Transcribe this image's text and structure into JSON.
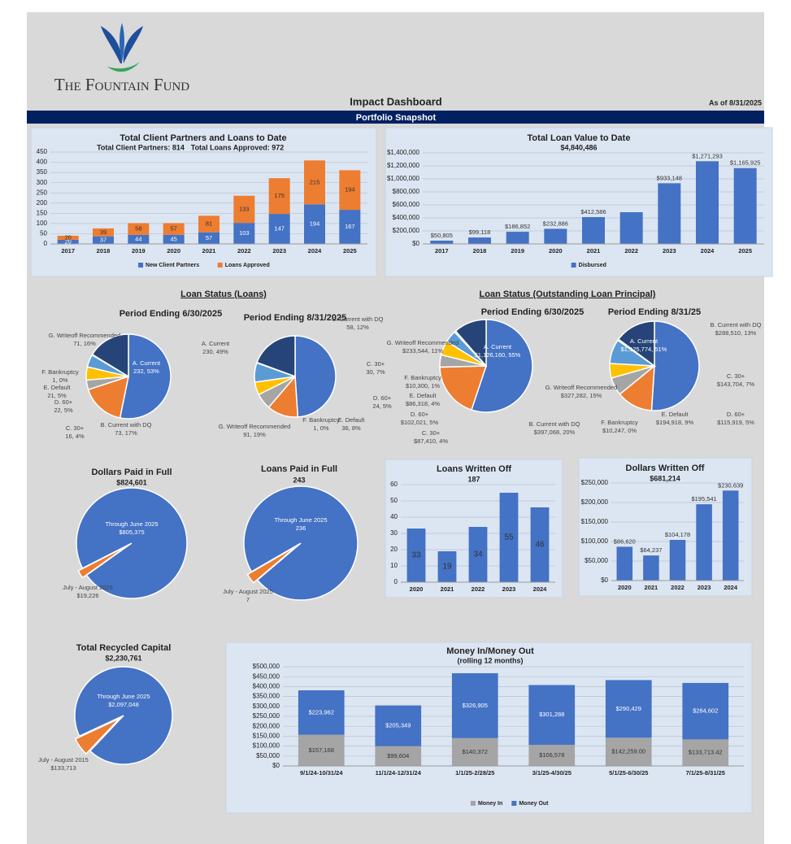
{
  "header": {
    "logo": "The Fountain Fund",
    "title": "Impact Dashboard",
    "as_of": "As of 8/31/2025",
    "band": "Portfolio Snapshot"
  },
  "sections": {
    "loans": "Loan Status (Loans)",
    "principal": "Loan Status (Outstanding Loan Principal)"
  },
  "chart_data": [
    {
      "type": "bar",
      "title": "Total Client Partners and Loans to Date",
      "subtitle": [
        "Total Client Partners: 814",
        "Total Loans Approved: 972"
      ],
      "categories": [
        "2017",
        "2018",
        "2019",
        "2020",
        "2021",
        "2022",
        "2023",
        "2024",
        "2025"
      ],
      "series": [
        {
          "name": "New Client Partners",
          "color": "#4472c4",
          "values": [
            20,
            37,
            44,
            45,
            57,
            103,
            147,
            194,
            167
          ]
        },
        {
          "name": "Loans Approved",
          "color": "#ed7d31",
          "values": [
            20,
            39,
            58,
            57,
            81,
            133,
            175,
            215,
            194
          ]
        }
      ],
      "ylim": [
        0,
        450
      ],
      "yticks": [
        0,
        50,
        100,
        150,
        200,
        250,
        300,
        350,
        400,
        450
      ],
      "grid": true,
      "legend": "bottom"
    },
    {
      "type": "bar",
      "title": "Total Loan Value to Date",
      "subtitle": "$4,840,486",
      "categories": [
        "2017",
        "2018",
        "2019",
        "2020",
        "2021",
        "2022",
        "2023",
        "2024",
        "2025"
      ],
      "series": [
        {
          "name": "Disbursed",
          "color": "#4472c4",
          "values": [
            50805,
            99118,
            186852,
            232886,
            412586,
            487874,
            933148,
            1271293,
            1165925
          ],
          "value_labels": [
            "$50,805",
            "$99,118",
            "$186,852",
            "$232,886",
            "$412,586",
            "",
            "$933,148",
            "$1,271,293",
            "$1,165,925"
          ]
        }
      ],
      "ylim": [
        0,
        1400000
      ],
      "yticks": [
        {
          "value": 0,
          "label": "$0"
        },
        {
          "value": 200000,
          "label": "$200,000"
        },
        {
          "value": 400000,
          "label": "$400,000"
        },
        {
          "value": 600000,
          "label": "$600,000"
        },
        {
          "value": 800000,
          "label": "$800,000"
        },
        {
          "value": 1000000,
          "label": "$1,000,000"
        },
        {
          "value": 1200000,
          "label": "$1,200,000"
        },
        {
          "value": 1400000,
          "label": "$1,400,000"
        }
      ],
      "grid": true,
      "legend": "bottom"
    },
    {
      "type": "pie",
      "title": "Period Ending 6/30/2025",
      "categories": [
        "A. Current",
        "B. Current with DQ",
        "C. 30+",
        "D. 60+",
        "E. Default",
        "F. Bankruptcy",
        "G. Writeoff Recommended"
      ],
      "values": [
        232,
        73,
        16,
        22,
        21,
        1,
        71
      ],
      "value_labels": [
        "232, 53%",
        "73, 17%",
        "16, 4%",
        "22, 5%",
        "21, 5%",
        "1, 0%",
        "71, 16%"
      ],
      "colors": [
        "#4472c4",
        "#ed7d31",
        "#a5a5a5",
        "#ffc000",
        "#5b9bd5",
        "#70ad47",
        "#264478"
      ]
    },
    {
      "type": "pie",
      "title": "Period Ending 8/31/2025",
      "categories": [
        "A. Current",
        "B. Current with DQ",
        "C. 30+",
        "D. 60+",
        "E. Default",
        "F. Bankruptcy",
        "G. Writeoff Recommended"
      ],
      "values": [
        230,
        58,
        30,
        24,
        36,
        1,
        91
      ],
      "value_labels": [
        "230, 49%",
        "58, 12%",
        "30, 7%",
        "24, 5%",
        "36, 8%",
        "1, 0%",
        "91, 19%"
      ],
      "colors": [
        "#4472c4",
        "#ed7d31",
        "#a5a5a5",
        "#ffc000",
        "#5b9bd5",
        "#70ad47",
        "#264478"
      ]
    },
    {
      "type": "pie",
      "title": "Period Ending 6/30/2025",
      "categories": [
        "A. Current",
        "B. Current with DQ",
        "C. 30+",
        "D. 60+",
        "E. Default",
        "F. Bankruptcy",
        "G. Writeoff Recommended"
      ],
      "values": [
        1126160,
        397068,
        87410,
        102021,
        86318,
        10300,
        233544
      ],
      "value_labels": [
        "$1,126,160, 55%",
        "$397,068, 20%",
        "$87,410, 4%",
        "$102,021, 5%",
        "$86,318, 4%",
        "$10,300, 1%",
        "$233,544, 11%"
      ],
      "colors": [
        "#4472c4",
        "#ed7d31",
        "#a5a5a5",
        "#ffc000",
        "#5b9bd5",
        "#70ad47",
        "#264478"
      ]
    },
    {
      "type": "pie",
      "title": "Period Ending 8/31/25",
      "categories": [
        "A. Current",
        "B. Current with DQ",
        "C. 30+",
        "D. 60+",
        "E. Default",
        "F. Bankruptcy",
        "G. Writeoff Recommended"
      ],
      "values": [
        1125774,
        288510,
        143704,
        115919,
        194918,
        10247,
        327282
      ],
      "value_labels": [
        "$1,125,774, 51%",
        "$288,510, 13%",
        "$143,704, 7%",
        "$115,919, 5%",
        "$194,918, 9%",
        "$10,247, 0%",
        "$327,282, 15%"
      ],
      "colors": [
        "#4472c4",
        "#ed7d31",
        "#a5a5a5",
        "#ffc000",
        "#5b9bd5",
        "#70ad47",
        "#264478"
      ]
    },
    {
      "type": "pie",
      "title": "Dollars Paid in Full",
      "subtitle": "$824,601",
      "categories": [
        "Through June 2025",
        "July - August 2025"
      ],
      "values": [
        805375,
        19226
      ],
      "value_labels": [
        "$805,375",
        "$19,226"
      ],
      "colors": [
        "#4472c4",
        "#ed7d31"
      ]
    },
    {
      "type": "pie",
      "title": "Loans Paid in Full",
      "subtitle": "243",
      "categories": [
        "Through June 2025",
        "July - August 2025"
      ],
      "values": [
        236,
        7
      ],
      "colors": [
        "#4472c4",
        "#ed7d31"
      ]
    },
    {
      "type": "bar",
      "title": "Loans Written Off",
      "subtitle": "187",
      "categories": [
        "2020",
        "2021",
        "2022",
        "2023",
        "2024"
      ],
      "series": [
        {
          "color": "#4472c4",
          "values": [
            33,
            19,
            34,
            55,
            46
          ]
        }
      ],
      "ylim": [
        0,
        60
      ],
      "yticks": [
        0,
        10,
        20,
        30,
        40,
        50,
        60
      ],
      "grid": true
    },
    {
      "type": "bar",
      "title": "Dollars Written Off",
      "subtitle": "$681,214",
      "categories": [
        "2020",
        "2021",
        "2022",
        "2023",
        "2024"
      ],
      "series": [
        {
          "color": "#4472c4",
          "values": [
            86620,
            64237,
            104178,
            195541,
            230639
          ],
          "value_labels": [
            "$86,620",
            "$64,237",
            "$104,178",
            "$195,541",
            "$230,639"
          ]
        }
      ],
      "ylim": [
        0,
        250000
      ],
      "yticks": [
        {
          "value": 0,
          "label": "$0"
        },
        {
          "value": 50000,
          "label": "$50,000"
        },
        {
          "value": 100000,
          "label": "$100,000"
        },
        {
          "value": 150000,
          "label": "$150,000"
        },
        {
          "value": 200000,
          "label": "$200,000"
        },
        {
          "value": 250000,
          "label": "$250,000"
        }
      ],
      "grid": true
    },
    {
      "type": "pie",
      "title": "Total Recycled Capital",
      "subtitle": "$2,230,761",
      "categories": [
        "Through June 2025",
        "July - August 2015"
      ],
      "values": [
        2097048,
        133713
      ],
      "value_labels": [
        "$2,097,048",
        "$133,713"
      ],
      "colors": [
        "#4472c4",
        "#ed7d31"
      ]
    },
    {
      "type": "bar",
      "title": "Money In/Money Out",
      "subtitle": "(rolling 12 months)",
      "categories": [
        "9/1/24-10/31/24",
        "11/1/24-12/31/24",
        "1/1/25-2/28/25",
        "3/1/25-4/30/25",
        "5/1/25-6/30/25",
        "7/1/25-8/31/25"
      ],
      "series": [
        {
          "name": "Money In",
          "color": "#a5a5a5",
          "values": [
            157168,
            99604,
            140372,
            106578,
            142259,
            133713.42
          ],
          "value_labels": [
            "$157,168",
            "$99,604",
            "$140,372",
            "$106,578",
            "$142,259.00",
            "$133,713.42"
          ]
        },
        {
          "name": "Money Out",
          "color": "#4472c4",
          "values": [
            223962,
            205349,
            326905,
            301288,
            290429,
            284602
          ],
          "value_labels": [
            "$223,962",
            "$205,349",
            "$326,905",
            "$301,288",
            "$290,429",
            "$284,602"
          ]
        }
      ],
      "ylim": [
        0,
        500000
      ],
      "yticks": [
        {
          "value": 0,
          "label": "$0"
        },
        {
          "value": 50000,
          "label": "$50,000"
        },
        {
          "value": 100000,
          "label": "$100,000"
        },
        {
          "value": 150000,
          "label": "$150,000"
        },
        {
          "value": 200000,
          "label": "$200,000"
        },
        {
          "value": 250000,
          "label": "$250,000"
        },
        {
          "value": 300000,
          "label": "$300,000"
        },
        {
          "value": 350000,
          "label": "$350,000"
        },
        {
          "value": 400000,
          "label": "$400,000"
        },
        {
          "value": 450000,
          "label": "$450,000"
        },
        {
          "value": 500000,
          "label": "$500,000"
        }
      ],
      "grid": true,
      "legend": "bottom"
    }
  ]
}
